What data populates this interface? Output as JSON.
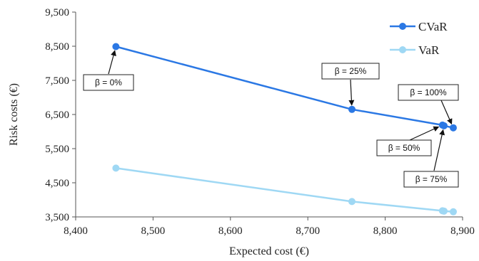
{
  "chart_data": {
    "type": "line",
    "xlabel": "Expected cost (€)",
    "ylabel": "Risk costs (€)",
    "xlim": [
      8400,
      8900
    ],
    "ylim": [
      3500,
      9500
    ],
    "xticks": [
      8400,
      8500,
      8600,
      8700,
      8800,
      8900
    ],
    "yticks": [
      3500,
      4500,
      5500,
      6500,
      7500,
      8500,
      9500
    ],
    "xtick_labels": [
      "8,400",
      "8,500",
      "8,600",
      "8,700",
      "8,800",
      "8,900"
    ],
    "ytick_labels": [
      "3,500",
      "4,500",
      "5,500",
      "6,500",
      "7,500",
      "8,500",
      "9,500"
    ],
    "grid": false,
    "legend_position": "top-right",
    "series": [
      {
        "name": "CVaR",
        "color": "#2b78e4",
        "points": [
          {
            "x": 8452,
            "y": 8490
          },
          {
            "x": 8757,
            "y": 6650
          },
          {
            "x": 8874,
            "y": 6190
          },
          {
            "x": 8876,
            "y": 6170
          },
          {
            "x": 8888,
            "y": 6110
          }
        ]
      },
      {
        "name": "VaR",
        "color": "#9fd8f4",
        "points": [
          {
            "x": 8452,
            "y": 4930
          },
          {
            "x": 8757,
            "y": 3950
          },
          {
            "x": 8874,
            "y": 3680
          },
          {
            "x": 8876,
            "y": 3670
          },
          {
            "x": 8888,
            "y": 3650
          }
        ]
      }
    ],
    "annotations": [
      {
        "label": "β = 0%"
      },
      {
        "label": "β = 25%"
      },
      {
        "label": "β = 50%"
      },
      {
        "label": "β = 75%"
      },
      {
        "label": "β = 100%"
      }
    ]
  }
}
